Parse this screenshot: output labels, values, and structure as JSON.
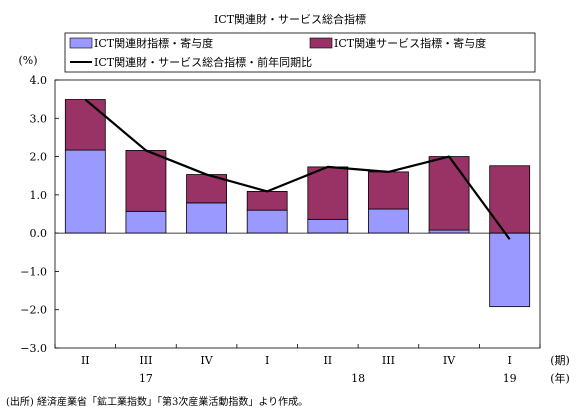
{
  "chart_data": {
    "type": "bar",
    "title": "ICT関連財・サービス総合指標",
    "y_unit": "(%)",
    "x_unit_period": "(期)",
    "x_unit_year": "(年)",
    "source_note": "(出所) 経済産業省「鉱工業指数」「第3次産業活動指数」より作成。",
    "categories": [
      "II",
      "III",
      "IV",
      "I",
      "II",
      "III",
      "IV",
      "I"
    ],
    "year_labels": [
      {
        "label": "17",
        "at_index": 1
      },
      {
        "label": "18",
        "at_index": 4.5
      },
      {
        "label": "19",
        "at_index": 7
      }
    ],
    "ylim": [
      -3.0,
      4.0
    ],
    "yticks": [
      4.0,
      3.0,
      2.0,
      1.0,
      0.0,
      -1.0,
      -2.0,
      -3.0
    ],
    "ytick_labels": [
      "4.0",
      "3.0",
      "2.0",
      "1.0",
      "0.0",
      "−1.0",
      "−2.0",
      "−3.0"
    ],
    "grid": false,
    "legend_position": "top",
    "series": [
      {
        "name": "ICT関連財指標・寄与度",
        "kind": "bar",
        "color": "#9999ff",
        "values": [
          2.17,
          0.57,
          0.79,
          0.6,
          0.36,
          0.63,
          0.08,
          -1.92
        ]
      },
      {
        "name": "ICT関連サービス指標・寄与度",
        "kind": "bar",
        "color": "#993366",
        "values": [
          1.32,
          1.59,
          0.74,
          0.49,
          1.37,
          0.97,
          1.92,
          1.76
        ]
      },
      {
        "name": "ICT関連財・サービス総合指標・前年同期比",
        "kind": "line",
        "color": "#000000",
        "values": [
          3.49,
          2.16,
          1.53,
          1.09,
          1.73,
          1.6,
          2.0,
          -0.16
        ]
      }
    ]
  }
}
